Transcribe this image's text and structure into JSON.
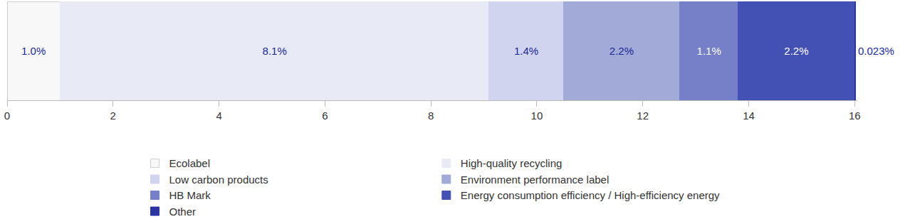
{
  "chart_data": {
    "type": "bar",
    "orientation": "horizontal",
    "stacked": true,
    "data_labels": true,
    "tick_labels": "x",
    "grid": false,
    "legend": "bottom",
    "xlim": [
      0,
      16.05
    ],
    "xticks": [
      0,
      2,
      4,
      6,
      8,
      10,
      12,
      14,
      16
    ],
    "series": [
      {
        "name": "Ecolabel",
        "color": "#f8f8f8",
        "values": [
          1.0
        ],
        "value_labels": [
          "1.0%"
        ]
      },
      {
        "name": "High-quality recycling",
        "color": "#e8eaf6",
        "values": [
          8.1
        ],
        "value_labels": [
          "8.1%"
        ]
      },
      {
        "name": "Low carbon products",
        "color": "#d0d4ee",
        "values": [
          1.4
        ],
        "value_labels": [
          "1.4%"
        ]
      },
      {
        "name": "Environment performance label",
        "color": "#a2aad8",
        "values": [
          2.2
        ],
        "value_labels": [
          "2.2%"
        ]
      },
      {
        "name": "HB Mark",
        "color": "#7580c8",
        "values": [
          1.1
        ],
        "value_labels": [
          "1.1%"
        ]
      },
      {
        "name": "Energy consumption efficiency / High-efficiency energy",
        "color": "#4350b4",
        "values": [
          2.2
        ],
        "value_labels": [
          "2.2%"
        ]
      },
      {
        "name": "Other",
        "color": "#2a34a4",
        "values": [
          0.023
        ],
        "value_labels": [
          "0.023%"
        ]
      }
    ]
  }
}
